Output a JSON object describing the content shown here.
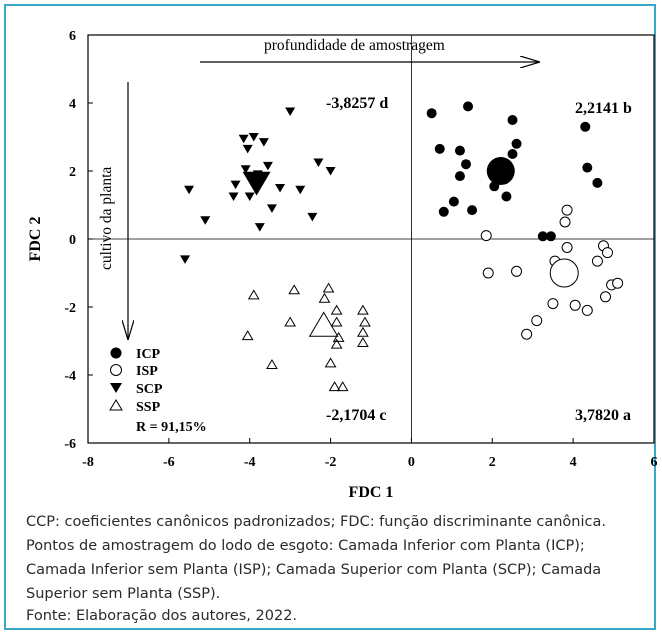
{
  "chart_data": {
    "type": "scatter",
    "xlabel": "FDC 1",
    "ylabel": "FDC 2",
    "xlim": [
      -8,
      6
    ],
    "ylim": [
      -6,
      6
    ],
    "xticks": [
      "-8",
      "-6",
      "-4",
      "-2",
      "0",
      "2",
      "4",
      "6"
    ],
    "yticks": [
      "-6",
      "-4",
      "-2",
      "0",
      "2",
      "4",
      "6"
    ],
    "reference_lines": {
      "x": 0,
      "y": 0
    },
    "arrow_labels": {
      "horizontal": "profundidade de amostragem",
      "vertical": "cultivo da planta"
    },
    "centroid_labels": {
      "SCP": "-3,8257 d",
      "ICP": "2,2141 b",
      "SSP": "-2,1704 c",
      "ISP": "3,7820 a"
    },
    "legend": {
      "position": "bottom-left",
      "note": "R = 91,15%"
    },
    "series": [
      {
        "name": "ICP",
        "marker": "filled-circle",
        "color": "#000000",
        "centroid": [
          2.21,
          2.0
        ],
        "points": [
          [
            0.5,
            3.7
          ],
          [
            1.4,
            3.9
          ],
          [
            2.5,
            3.5
          ],
          [
            4.3,
            3.3
          ],
          [
            0.7,
            2.65
          ],
          [
            1.2,
            2.6
          ],
          [
            2.6,
            2.8
          ],
          [
            1.35,
            2.2
          ],
          [
            1.2,
            1.85
          ],
          [
            2.5,
            2.5
          ],
          [
            4.35,
            2.1
          ],
          [
            2.3,
            1.75
          ],
          [
            4.6,
            1.65
          ],
          [
            2.05,
            1.55
          ],
          [
            1.05,
            1.1
          ],
          [
            0.8,
            0.8
          ],
          [
            1.5,
            0.85
          ],
          [
            2.35,
            1.25
          ],
          [
            3.25,
            0.08
          ],
          [
            3.45,
            0.08
          ]
        ]
      },
      {
        "name": "ISP",
        "marker": "open-circle",
        "color": "#000000",
        "centroid": [
          3.78,
          -1.0
        ],
        "points": [
          [
            3.85,
            0.85
          ],
          [
            3.8,
            0.5
          ],
          [
            1.85,
            0.1
          ],
          [
            3.85,
            -0.25
          ],
          [
            4.75,
            -0.2
          ],
          [
            4.85,
            -0.4
          ],
          [
            4.6,
            -0.65
          ],
          [
            3.55,
            -0.65
          ],
          [
            1.9,
            -1.0
          ],
          [
            2.6,
            -0.95
          ],
          [
            3.65,
            -1.15
          ],
          [
            4.95,
            -1.35
          ],
          [
            5.1,
            -1.3
          ],
          [
            4.8,
            -1.7
          ],
          [
            3.5,
            -1.9
          ],
          [
            4.05,
            -1.95
          ],
          [
            4.35,
            -2.1
          ],
          [
            3.1,
            -2.4
          ],
          [
            2.85,
            -2.8
          ]
        ]
      },
      {
        "name": "SCP",
        "marker": "filled-triangle-down",
        "color": "#000000",
        "centroid": [
          -3.83,
          1.65
        ],
        "points": [
          [
            -3.0,
            3.75
          ],
          [
            -4.15,
            2.95
          ],
          [
            -3.9,
            3.0
          ],
          [
            -3.65,
            2.85
          ],
          [
            -4.05,
            2.65
          ],
          [
            -3.55,
            2.15
          ],
          [
            -4.1,
            2.05
          ],
          [
            -2.3,
            2.25
          ],
          [
            -2.0,
            2.0
          ],
          [
            -3.8,
            1.9
          ],
          [
            -4.35,
            1.6
          ],
          [
            -5.5,
            1.45
          ],
          [
            -4.4,
            1.25
          ],
          [
            -3.25,
            1.5
          ],
          [
            -2.75,
            1.45
          ],
          [
            -4.0,
            1.25
          ],
          [
            -3.45,
            0.9
          ],
          [
            -5.1,
            0.55
          ],
          [
            -3.75,
            0.35
          ],
          [
            -2.45,
            0.65
          ],
          [
            -5.6,
            -0.6
          ]
        ]
      },
      {
        "name": "SSP",
        "marker": "open-triangle-up",
        "color": "#000000",
        "centroid": [
          -2.17,
          -2.55
        ],
        "points": [
          [
            -2.05,
            -1.45
          ],
          [
            -2.9,
            -1.5
          ],
          [
            -3.9,
            -1.65
          ],
          [
            -2.15,
            -1.75
          ],
          [
            -1.85,
            -2.1
          ],
          [
            -1.2,
            -2.1
          ],
          [
            -3.0,
            -2.45
          ],
          [
            -1.85,
            -2.45
          ],
          [
            -1.15,
            -2.45
          ],
          [
            -1.2,
            -2.75
          ],
          [
            -1.8,
            -2.9
          ],
          [
            -4.05,
            -2.85
          ],
          [
            -1.85,
            -3.1
          ],
          [
            -1.2,
            -3.05
          ],
          [
            -2.0,
            -3.65
          ],
          [
            -3.45,
            -3.7
          ],
          [
            -1.9,
            -4.35
          ],
          [
            -1.7,
            -4.35
          ]
        ]
      }
    ]
  },
  "caption": {
    "line1": "CCP: coeficientes canônicos padronizados; FDC: função discriminante canônica.",
    "line2": "Pontos de amostragem do lodo de esgoto: Camada Inferior com Planta (ICP); Camada Inferior sem Planta (ISP); Camada Superior com Planta (SCP); Camada Superior sem Planta (SSP).",
    "source": "Fonte: Elaboração dos autores, 2022."
  },
  "colors": {
    "frame": "#3aa7c9",
    "text": "#2b2b2b",
    "marks": "#000000"
  }
}
